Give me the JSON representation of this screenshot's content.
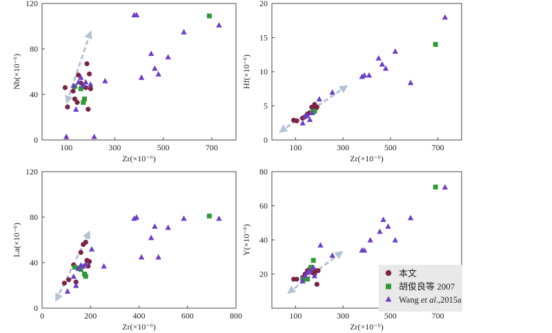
{
  "legend": {
    "items": [
      {
        "label": "本文",
        "marker": "circle",
        "color": "#7b2346"
      },
      {
        "label": "胡俊良等 2007",
        "marker": "square",
        "color": "#2e9a35"
      },
      {
        "label_parts": [
          "Wang ",
          "et al",
          ".,2015a"
        ],
        "marker": "triangle",
        "color": "#6a3fc6"
      }
    ]
  },
  "colors": {
    "this_study": "#7b2346",
    "hu_2007": "#2e9a35",
    "wang_2015": "#6a3fc6",
    "trend_arrow": "#b4c3d3",
    "axis": "#444444"
  },
  "chart_data": [
    {
      "type": "scatter",
      "id": "nb",
      "xlabel": "Zr(×10⁻⁶)",
      "ylabel": "Nb(×10⁻⁶)",
      "xlim": [
        0,
        800
      ],
      "ylim": [
        0,
        120
      ],
      "xticks": [
        100,
        300,
        500,
        700
      ],
      "yticks": [
        0,
        40,
        80,
        120
      ],
      "series": [
        {
          "key": "this_study",
          "marker": "circle",
          "points": [
            [
              95,
              46
            ],
            [
              105,
              29
            ],
            [
              128,
              43
            ],
            [
              135,
              36
            ],
            [
              145,
              33
            ],
            [
              150,
              57
            ],
            [
              160,
              50
            ],
            [
              170,
              47
            ],
            [
              180,
              46
            ],
            [
              185,
              67
            ],
            [
              190,
              27
            ],
            [
              195,
              58
            ],
            [
              200,
              45
            ]
          ]
        },
        {
          "key": "hu_2007",
          "marker": "square",
          "points": [
            [
              135,
              47
            ],
            [
              160,
              45
            ],
            [
              170,
              33
            ],
            [
              175,
              36
            ],
            [
              690,
              109
            ]
          ]
        },
        {
          "key": "wang_2015",
          "marker": "triangle",
          "points": [
            [
              100,
              3
            ],
            [
              130,
              48
            ],
            [
              140,
              27
            ],
            [
              150,
              51
            ],
            [
              160,
              55
            ],
            [
              170,
              48
            ],
            [
              180,
              51
            ],
            [
              200,
              49
            ],
            [
              215,
              3
            ],
            [
              260,
              52
            ],
            [
              380,
              110
            ],
            [
              390,
              110
            ],
            [
              410,
              55
            ],
            [
              450,
              76
            ],
            [
              465,
              63
            ],
            [
              480,
              58
            ],
            [
              520,
              73
            ],
            [
              585,
              95
            ],
            [
              730,
              101
            ]
          ]
        }
      ],
      "trend": [
        [
          102,
          33
        ],
        [
          200,
          95
        ]
      ]
    },
    {
      "type": "scatter",
      "id": "hf",
      "xlabel": "Zr(×10⁻⁶)",
      "ylabel": "Hf(×10⁻⁶)",
      "xlim": [
        0,
        800
      ],
      "ylim": [
        0,
        20
      ],
      "xticks": [
        100,
        300,
        500,
        700
      ],
      "yticks": [
        0,
        5,
        10,
        15,
        20
      ],
      "series": [
        {
          "key": "this_study",
          "marker": "circle",
          "points": [
            [
              92,
              2.9
            ],
            [
              105,
              2.8
            ],
            [
              130,
              3.2
            ],
            [
              140,
              3.4
            ],
            [
              150,
              3.8
            ],
            [
              160,
              4.0
            ],
            [
              168,
              4.8
            ],
            [
              175,
              4.2
            ],
            [
              180,
              5.2
            ],
            [
              185,
              4.6
            ],
            [
              190,
              4.8
            ]
          ]
        },
        {
          "key": "hu_2007",
          "marker": "square",
          "points": [
            [
              170,
              4.0
            ],
            [
              180,
              4.2
            ],
            [
              690,
              14.0
            ]
          ]
        },
        {
          "key": "wang_2015",
          "marker": "triangle",
          "points": [
            [
              130,
              2.5
            ],
            [
              140,
              3.5
            ],
            [
              150,
              3.6
            ],
            [
              160,
              3.0
            ],
            [
              170,
              4.0
            ],
            [
              200,
              6.0
            ],
            [
              255,
              7.0
            ],
            [
              380,
              9.3
            ],
            [
              390,
              9.5
            ],
            [
              410,
              9.5
            ],
            [
              450,
              12.0
            ],
            [
              465,
              11.1
            ],
            [
              480,
              10.5
            ],
            [
              520,
              13.0
            ],
            [
              585,
              8.4
            ],
            [
              730,
              18.0
            ]
          ]
        }
      ],
      "trend": [
        [
          35,
          1.2
        ],
        [
          315,
          7.9
        ]
      ]
    },
    {
      "type": "scatter",
      "id": "la",
      "xlabel": "Zr(×10⁻⁶)",
      "ylabel": "La(×10⁻⁶)",
      "xlim": [
        0,
        800
      ],
      "ylim": [
        0,
        120
      ],
      "xticks": [
        0,
        200,
        400,
        600,
        800
      ],
      "yticks": [
        0,
        40,
        80,
        120
      ],
      "series": [
        {
          "key": "this_study",
          "marker": "circle",
          "points": [
            [
              92,
              22
            ],
            [
              110,
              25
            ],
            [
              130,
              38
            ],
            [
              140,
              23
            ],
            [
              150,
              35
            ],
            [
              160,
              49
            ],
            [
              170,
              56
            ],
            [
              180,
              58
            ],
            [
              185,
              42
            ],
            [
              190,
              37
            ],
            [
              195,
              41
            ]
          ]
        },
        {
          "key": "hu_2007",
          "marker": "square",
          "points": [
            [
              135,
              36
            ],
            [
              160,
              34
            ],
            [
              175,
              30
            ],
            [
              180,
              28
            ],
            [
              690,
              81
            ]
          ]
        },
        {
          "key": "wang_2015",
          "marker": "triangle",
          "points": [
            [
              105,
              15
            ],
            [
              130,
              28
            ],
            [
              140,
              20
            ],
            [
              150,
              35
            ],
            [
              160,
              38
            ],
            [
              170,
              37
            ],
            [
              180,
              39
            ],
            [
              205,
              52
            ],
            [
              255,
              37
            ],
            [
              380,
              79
            ],
            [
              390,
              80
            ],
            [
              410,
              45
            ],
            [
              450,
              62
            ],
            [
              465,
              72
            ],
            [
              480,
              45
            ],
            [
              520,
              71
            ],
            [
              585,
              79
            ],
            [
              730,
              79
            ]
          ]
        }
      ],
      "trend": [
        [
          58,
          7
        ],
        [
          195,
          67
        ]
      ]
    },
    {
      "type": "scatter",
      "id": "y",
      "xlabel": "Zr(×10⁻⁶)",
      "ylabel": "Y(×10⁻⁶)",
      "xlim": [
        0,
        800
      ],
      "ylim": [
        0,
        80
      ],
      "xticks": [
        100,
        300,
        500,
        700
      ],
      "yticks": [
        20,
        40,
        60,
        80
      ],
      "series": [
        {
          "key": "this_study",
          "marker": "circle",
          "points": [
            [
              92,
              17
            ],
            [
              105,
              17
            ],
            [
              130,
              18
            ],
            [
              140,
              20
            ],
            [
              150,
              22
            ],
            [
              160,
              23
            ],
            [
              170,
              21
            ],
            [
              180,
              20
            ],
            [
              185,
              22
            ],
            [
              190,
              14
            ],
            [
              195,
              22
            ]
          ]
        },
        {
          "key": "hu_2007",
          "marker": "square",
          "points": [
            [
              130,
              17
            ],
            [
              150,
              17
            ],
            [
              165,
              24
            ],
            [
              175,
              28
            ],
            [
              690,
              71
            ]
          ]
        },
        {
          "key": "wang_2015",
          "marker": "triangle",
          "points": [
            [
              130,
              16
            ],
            [
              140,
              19
            ],
            [
              150,
              21
            ],
            [
              160,
              22
            ],
            [
              175,
              24
            ],
            [
              180,
              19
            ],
            [
              205,
              37
            ],
            [
              255,
              31
            ],
            [
              380,
              34
            ],
            [
              390,
              34
            ],
            [
              415,
              40
            ],
            [
              455,
              45
            ],
            [
              470,
              52
            ],
            [
              490,
              48
            ],
            [
              520,
              40
            ],
            [
              585,
              53
            ],
            [
              730,
              71
            ]
          ]
        }
      ],
      "trend": [
        [
          70,
          9
        ],
        [
          295,
          33
        ]
      ]
    }
  ]
}
